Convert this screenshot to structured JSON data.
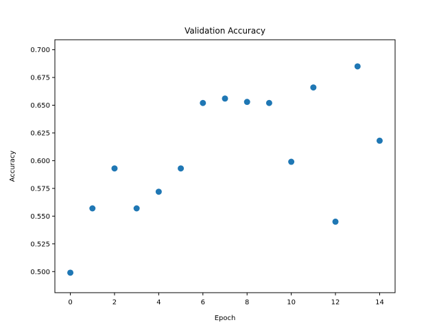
{
  "chart_data": {
    "type": "scatter",
    "title": "Validation Accuracy",
    "xlabel": "Epoch",
    "ylabel": "Accuracy",
    "xlim": [
      -0.7,
      14.7
    ],
    "ylim": [
      0.481,
      0.709
    ],
    "x_ticks": [
      0,
      2,
      4,
      6,
      8,
      10,
      12,
      14
    ],
    "x_tick_labels": [
      "0",
      "2",
      "4",
      "6",
      "8",
      "10",
      "12",
      "14"
    ],
    "y_ticks": [
      0.5,
      0.525,
      0.55,
      0.575,
      0.6,
      0.625,
      0.65,
      0.675,
      0.7
    ],
    "y_tick_labels": [
      "0.500",
      "0.525",
      "0.550",
      "0.575",
      "0.600",
      "0.625",
      "0.650",
      "0.675",
      "0.700"
    ],
    "grid": false,
    "color": "#1f77b4",
    "x": [
      0,
      1,
      2,
      3,
      4,
      5,
      6,
      7,
      8,
      9,
      10,
      11,
      12,
      13,
      14
    ],
    "y": [
      0.499,
      0.557,
      0.593,
      0.557,
      0.572,
      0.593,
      0.652,
      0.656,
      0.653,
      0.652,
      0.599,
      0.666,
      0.545,
      0.685,
      0.618
    ]
  }
}
